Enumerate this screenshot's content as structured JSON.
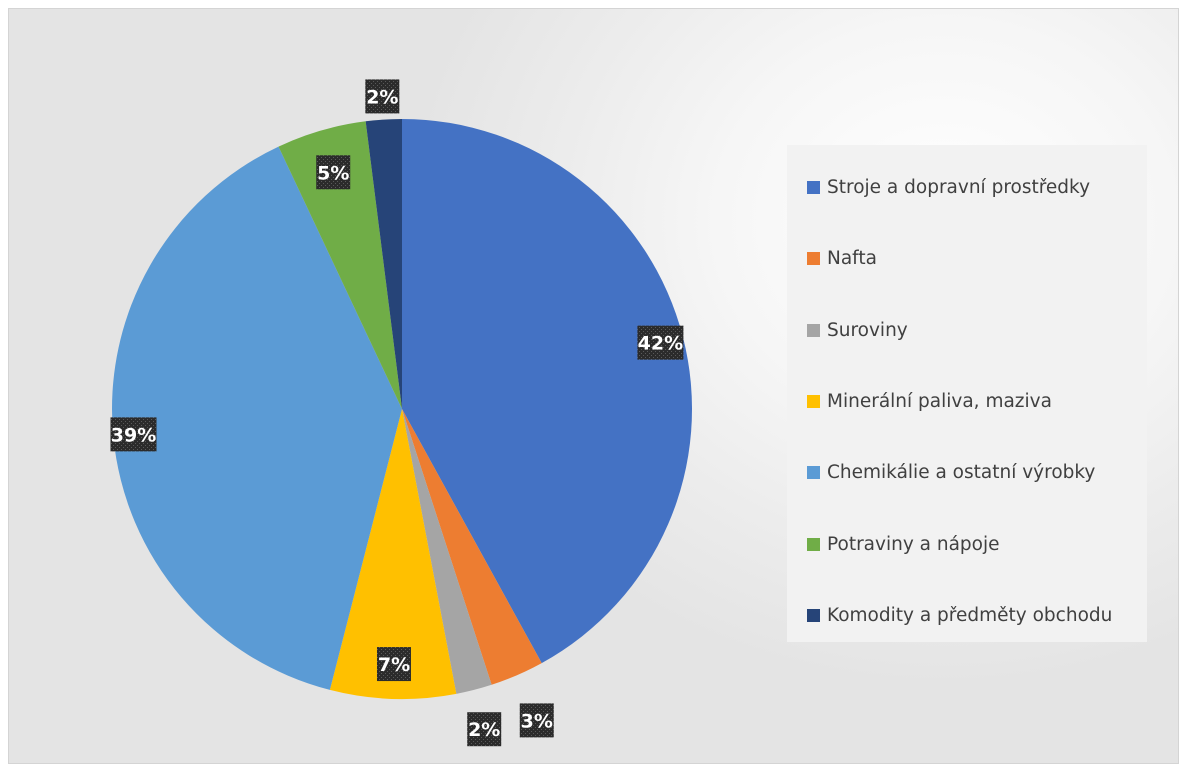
{
  "chart_data": {
    "type": "pie",
    "categories": [
      "Stroje a dopravní prostředky",
      "Nafta",
      "Suroviny",
      "Minerální paliva, maziva",
      "Chemikálie a ostatní výrobky",
      "Potraviny a nápoje",
      "Komodity a předměty obchodu"
    ],
    "values": [
      42,
      3,
      2,
      7,
      39,
      5,
      2
    ],
    "data_labels": [
      "42%",
      "3%",
      "2%",
      "7%",
      "39%",
      "5%",
      "2%"
    ],
    "colors": [
      "#4472C4",
      "#ED7D31",
      "#A5A5A5",
      "#FFC000",
      "#5B9BD5",
      "#70AD47",
      "#264478"
    ],
    "start_angle_deg": 0,
    "direction": "clockwise",
    "legend_position": "right",
    "title": ""
  }
}
